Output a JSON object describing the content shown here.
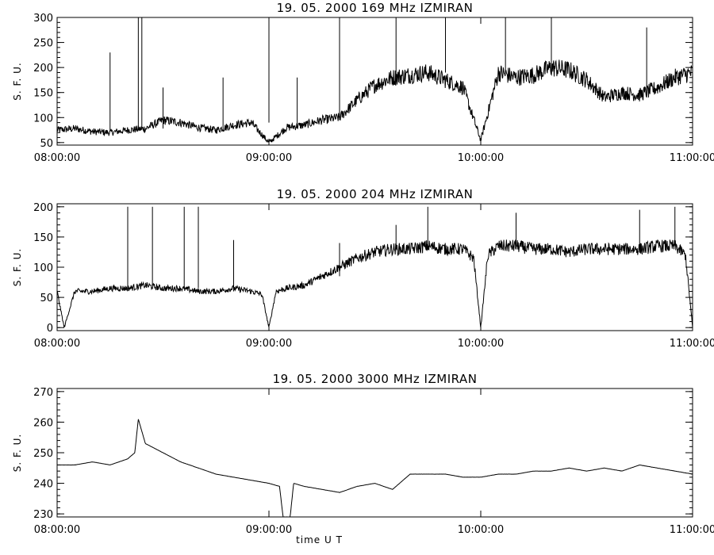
{
  "chart_data": [
    {
      "type": "line",
      "title": "19.  05.  2000    169 MHz    IZMIRAN",
      "ylabel": "S. F. U.",
      "xlabel": "",
      "x_range": [
        "08:00:00",
        "11:00:00"
      ],
      "ylim": [
        45,
        300
      ],
      "yticks": [
        50,
        100,
        150,
        200,
        250,
        300
      ],
      "xticks": [
        "08:00:00",
        "09:00:00",
        "10:00:00",
        "11:00:00"
      ],
      "grid": false,
      "series": [
        {
          "x": [
            "08:00",
            "08:05",
            "08:10",
            "08:15",
            "08:20",
            "08:25",
            "08:30",
            "08:35",
            "08:40",
            "08:45",
            "08:50",
            "08:55",
            "09:00",
            "09:05",
            "09:10",
            "09:15",
            "09:20",
            "09:25",
            "09:30",
            "09:35",
            "09:40",
            "09:45",
            "09:50",
            "09:55",
            "10:00",
            "10:05",
            "10:10",
            "10:15",
            "10:20",
            "10:25",
            "10:30",
            "10:35",
            "10:40",
            "10:45",
            "10:50",
            "10:55",
            "11:00"
          ],
          "values": [
            75,
            78,
            72,
            70,
            75,
            78,
            95,
            90,
            80,
            75,
            85,
            90,
            50,
            80,
            85,
            95,
            100,
            135,
            165,
            180,
            185,
            190,
            175,
            160,
            55,
            190,
            180,
            185,
            200,
            195,
            175,
            140,
            150,
            145,
            160,
            180,
            190
          ],
          "spikes": [
            {
              "x": "08:15",
              "y": 230
            },
            {
              "x": "08:23",
              "y": 300
            },
            {
              "x": "08:24",
              "y": 300
            },
            {
              "x": "08:30",
              "y": 160
            },
            {
              "x": "08:47",
              "y": 180
            },
            {
              "x": "09:00",
              "y": 300
            },
            {
              "x": "09:08",
              "y": 180
            },
            {
              "x": "09:20",
              "y": 300
            },
            {
              "x": "09:36",
              "y": 300
            },
            {
              "x": "09:50",
              "y": 300
            },
            {
              "x": "10:07",
              "y": 300
            },
            {
              "x": "10:20",
              "y": 300
            },
            {
              "x": "10:47",
              "y": 280
            }
          ]
        }
      ]
    },
    {
      "type": "line",
      "title": "19.  05.  2000    204 MHz    IZMIRAN",
      "ylabel": "S. F. U.",
      "xlabel": "",
      "x_range": [
        "08:00:00",
        "11:00:00"
      ],
      "ylim": [
        -5,
        205
      ],
      "yticks": [
        0,
        50,
        100,
        150,
        200
      ],
      "xticks": [
        "08:00:00",
        "09:00:00",
        "10:00:00",
        "11:00:00"
      ],
      "grid": false,
      "series": [
        {
          "x": [
            "08:00",
            "08:02",
            "08:05",
            "08:10",
            "08:15",
            "08:20",
            "08:25",
            "08:30",
            "08:35",
            "08:40",
            "08:45",
            "08:50",
            "08:55",
            "08:58",
            "09:00",
            "09:02",
            "09:05",
            "09:10",
            "09:15",
            "09:20",
            "09:25",
            "09:30",
            "09:35",
            "09:40",
            "09:45",
            "09:50",
            "09:55",
            "09:58",
            "10:00",
            "10:02",
            "10:05",
            "10:10",
            "10:15",
            "10:20",
            "10:25",
            "10:30",
            "10:35",
            "10:40",
            "10:45",
            "10:50",
            "10:55",
            "10:58",
            "11:00"
          ],
          "values": [
            60,
            0,
            60,
            60,
            65,
            65,
            70,
            65,
            65,
            60,
            60,
            65,
            60,
            55,
            0,
            60,
            65,
            70,
            85,
            100,
            115,
            125,
            130,
            130,
            135,
            130,
            130,
            115,
            0,
            120,
            135,
            135,
            130,
            130,
            125,
            130,
            130,
            130,
            130,
            135,
            135,
            120,
            0
          ],
          "spikes": [
            {
              "x": "08:20",
              "y": 200
            },
            {
              "x": "08:27",
              "y": 200
            },
            {
              "x": "08:36",
              "y": 200
            },
            {
              "x": "08:40",
              "y": 200
            },
            {
              "x": "08:50",
              "y": 145
            },
            {
              "x": "09:20",
              "y": 140
            },
            {
              "x": "09:36",
              "y": 170
            },
            {
              "x": "09:45",
              "y": 200
            },
            {
              "x": "10:10",
              "y": 190
            },
            {
              "x": "10:45",
              "y": 195
            },
            {
              "x": "10:55",
              "y": 200
            }
          ]
        }
      ]
    },
    {
      "type": "line",
      "title": "19.  05.  2000    3000 MHz    IZMIRAN",
      "ylabel": "S. F. U.",
      "xlabel": "time   U T",
      "x_range": [
        "08:00:00",
        "11:00:00"
      ],
      "ylim": [
        229,
        271
      ],
      "yticks": [
        230,
        240,
        250,
        260,
        270
      ],
      "xticks": [
        "08:00:00",
        "09:00:00",
        "10:00:00",
        "11:00:00"
      ],
      "grid": false,
      "series": [
        {
          "x": [
            "08:00",
            "08:05",
            "08:10",
            "08:15",
            "08:20",
            "08:22",
            "08:23",
            "08:25",
            "08:30",
            "08:35",
            "08:40",
            "08:45",
            "08:50",
            "08:55",
            "09:00",
            "09:03",
            "09:04",
            "09:06",
            "09:07",
            "09:10",
            "09:15",
            "09:20",
            "09:25",
            "09:30",
            "09:35",
            "09:40",
            "09:45",
            "09:50",
            "09:55",
            "10:00",
            "10:05",
            "10:10",
            "10:15",
            "10:20",
            "10:25",
            "10:30",
            "10:35",
            "10:40",
            "10:45",
            "10:50",
            "10:55",
            "11:00"
          ],
          "values": [
            246,
            246,
            247,
            246,
            248,
            250,
            261,
            253,
            250,
            247,
            245,
            243,
            242,
            241,
            240,
            239,
            229,
            229,
            240,
            239,
            238,
            237,
            239,
            240,
            238,
            243,
            243,
            243,
            242,
            242,
            243,
            243,
            244,
            244,
            245,
            244,
            245,
            244,
            246,
            245,
            244,
            243
          ]
        }
      ]
    }
  ]
}
